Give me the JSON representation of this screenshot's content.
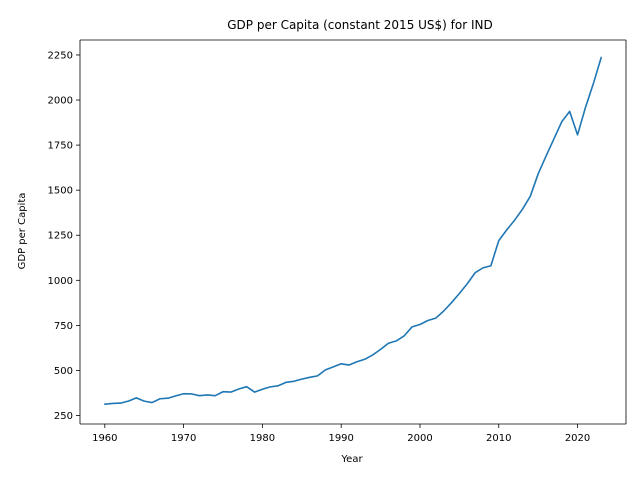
{
  "chart_data": {
    "type": "line",
    "title": "GDP per Capita (constant 2015 US$) for IND",
    "xlabel": "Year",
    "ylabel": "GDP per Capita",
    "xlim": [
      1956.85,
      2026.15
    ],
    "ylim": [
      203,
      2333
    ],
    "xticks": [
      1960,
      1970,
      1980,
      1990,
      2000,
      2010,
      2020
    ],
    "xtick_labels": [
      "1960",
      "1970",
      "1980",
      "1990",
      "2000",
      "2010",
      "2020"
    ],
    "yticks": [
      250,
      500,
      750,
      1000,
      1250,
      1500,
      1750,
      2000,
      2250
    ],
    "ytick_labels": [
      "250",
      "500",
      "750",
      "1000",
      "1250",
      "1500",
      "1750",
      "2000",
      "2250"
    ],
    "grid": false,
    "legend": "none",
    "colors": {
      "line": "#1f77b4",
      "axis": "#000000",
      "background": "#ffffff"
    },
    "series": [
      {
        "x": [
          1960,
          1961,
          1962,
          1963,
          1964,
          1965,
          1966,
          1967,
          1968,
          1969,
          1970,
          1971,
          1972,
          1973,
          1974,
          1975,
          1976,
          1977,
          1978,
          1979,
          1980,
          1981,
          1982,
          1983,
          1984,
          1985,
          1986,
          1987,
          1988,
          1989,
          1990,
          1991,
          1992,
          1993,
          1994,
          1995,
          1996,
          1997,
          1998,
          1999,
          2000,
          2001,
          2002,
          2003,
          2004,
          2005,
          2006,
          2007,
          2008,
          2009,
          2010,
          2011,
          2012,
          2013,
          2014,
          2015,
          2016,
          2017,
          2018,
          2019,
          2020,
          2021,
          2022,
          2023
        ],
        "values": [
          313,
          317,
          319,
          330,
          348,
          330,
          322,
          343,
          346,
          359,
          371,
          370,
          360,
          364,
          360,
          382,
          380,
          397,
          410,
          380,
          396,
          409,
          415,
          434,
          440,
          452,
          462,
          470,
          503,
          520,
          537,
          530,
          548,
          562,
          586,
          617,
          651,
          664,
          692,
          742,
          755,
          777,
          790,
          829,
          876,
          927,
          981,
          1042,
          1069,
          1081,
          1220,
          1279,
          1333,
          1394,
          1466,
          1590,
          1689,
          1784,
          1880,
          1937,
          1807,
          1958,
          2090,
          2236
        ]
      }
    ]
  }
}
